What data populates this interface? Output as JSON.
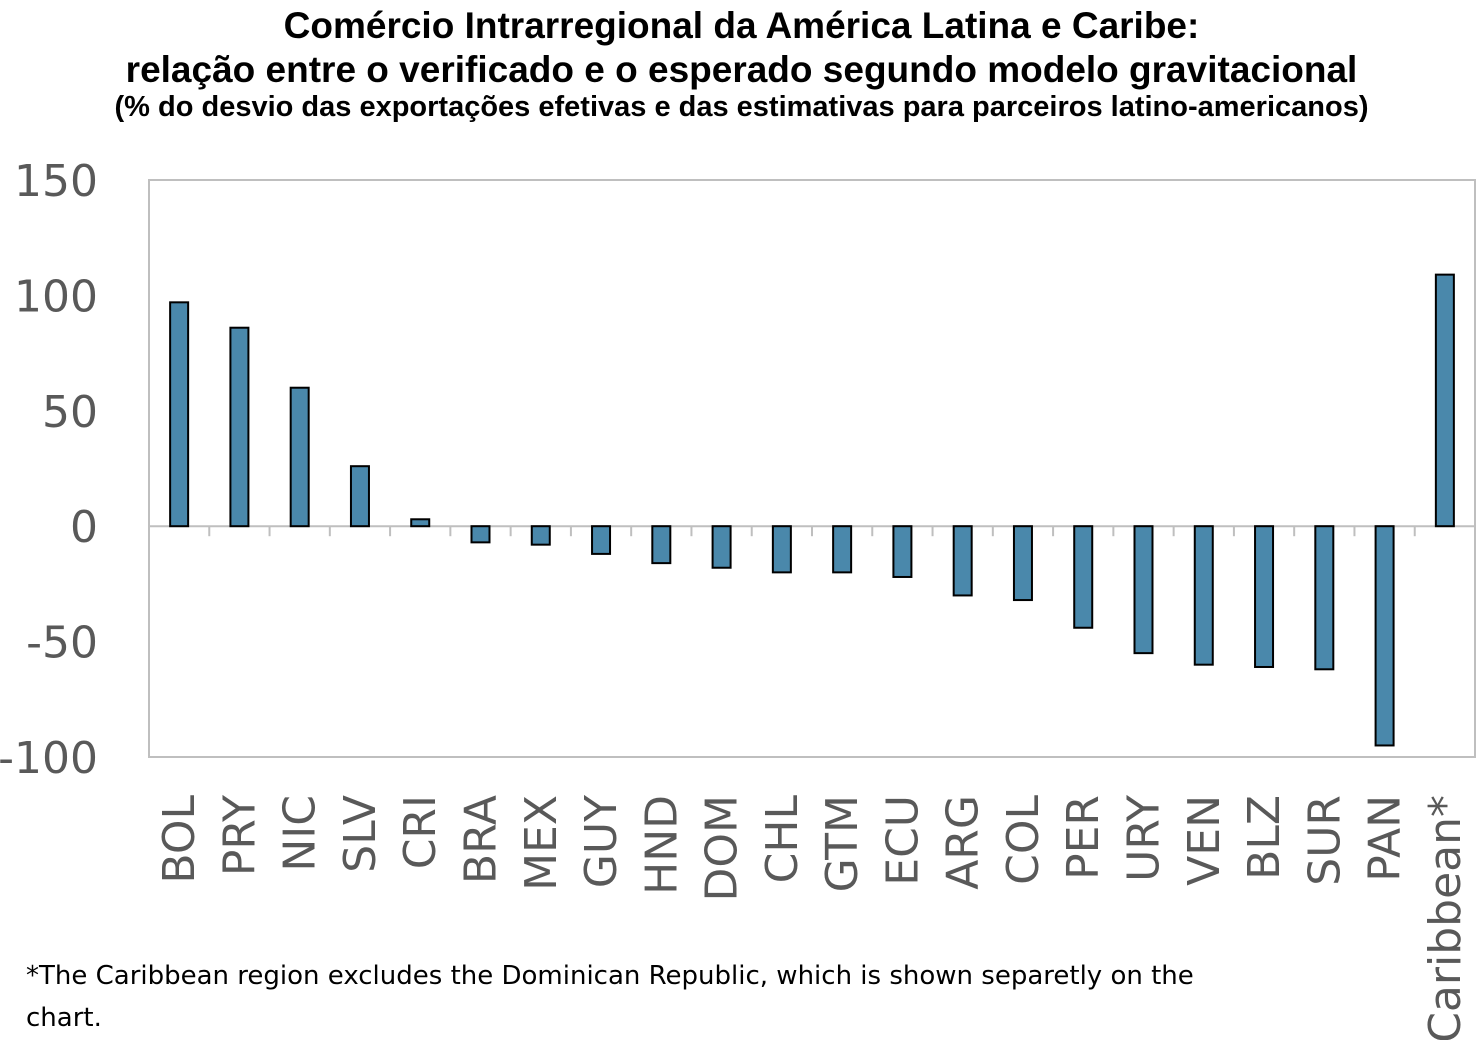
{
  "title_lines": [
    "Comércio Intrarregional da América Latina e Caribe:",
    "relação entre o verificado e o esperado segundo modelo gravitacional",
    "(% do desvio das exportações efetivas e das estimativas para parceiros latino-americanos)"
  ],
  "footnote": "*The Caribbean region excludes the Dominican Republic, which is shown separetly on the chart.",
  "colors": {
    "bar_fill": "#4a88ab",
    "bar_stroke": "#000000",
    "axis": "#bfbfbf",
    "tick_text": "#595959"
  },
  "chart_data": {
    "type": "bar",
    "categories": [
      "BOL",
      "PRY",
      "NIC",
      "SLV",
      "CRI",
      "BRA",
      "MEX",
      "GUY",
      "HND",
      "DOM",
      "CHL",
      "GTM",
      "ECU",
      "ARG",
      "COL",
      "PER",
      "URY",
      "VEN",
      "BLZ",
      "SUR",
      "PAN",
      "Caribbean*"
    ],
    "values": [
      97,
      86,
      60,
      26,
      3,
      -7,
      -8,
      -12,
      -16,
      -18,
      -20,
      -20,
      -22,
      -30,
      -32,
      -44,
      -55,
      -60,
      -61,
      -62,
      -95,
      109
    ],
    "ylim": [
      -100,
      150
    ],
    "yticks": [
      "150",
      "100",
      "50",
      "0",
      "-50",
      "-100"
    ],
    "ytick_values": [
      150,
      100,
      50,
      0,
      -50,
      -100
    ],
    "grid": false,
    "legend": "none"
  }
}
